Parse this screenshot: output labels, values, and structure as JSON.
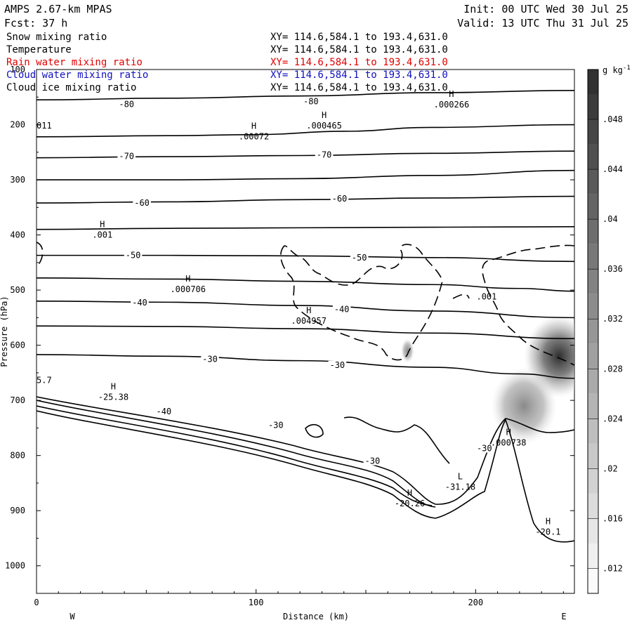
{
  "header": {
    "model": "AMPS 2.67-km MPAS",
    "forecast": "Fcst:   37 h",
    "init": "Init: 00 UTC Wed 30 Jul 25",
    "valid": "Valid: 13 UTC Thu 31 Jul 25"
  },
  "legend": [
    {
      "name": "Snow mixing ratio",
      "xy": "XY= 114.6,584.1 to 193.4,631.0",
      "color": "#000000"
    },
    {
      "name": "Temperature",
      "xy": "XY= 114.6,584.1 to 193.4,631.0",
      "color": "#000000"
    },
    {
      "name": "Rain water mixing ratio",
      "xy": "XY= 114.6,584.1 to 193.4,631.0",
      "color": "#e00000"
    },
    {
      "name": "Cloud water mixing ratio",
      "xy": "XY= 114.6,584.1 to 193.4,631.0",
      "color": "#1010c0"
    },
    {
      "name": "Cloud ice mixing ratio",
      "xy": "XY= 114.6,584.1 to 193.4,631.0",
      "color": "#000000"
    }
  ],
  "chart_data": {
    "type": "contour",
    "xlabel": "Distance (km)",
    "ylabel": "Pressure (hPa)",
    "xlim": [
      0,
      245
    ],
    "ylim": [
      100,
      1050
    ],
    "x_ticks": [
      0,
      100,
      200
    ],
    "y_ticks": [
      100,
      200,
      300,
      400,
      500,
      600,
      700,
      800,
      900,
      1000
    ],
    "x_end_labels": {
      "left": "W",
      "right": "E"
    },
    "colorbar": {
      "unit": "g kg",
      "unit_exp": "-1",
      "ticks": [
        ".012",
        ".016",
        ".02",
        ".024",
        ".028",
        ".032",
        ".036",
        ".04",
        ".044",
        ".048"
      ],
      "tick_values": [
        0.012,
        0.016,
        0.02,
        0.024,
        0.028,
        0.032,
        0.036,
        0.04,
        0.044,
        0.048
      ],
      "range": [
        0.01,
        0.052
      ]
    },
    "isotherms": [
      {
        "label": "-80",
        "points": [
          [
            0,
            155
          ],
          [
            60,
            152
          ],
          [
            120,
            148
          ],
          [
            180,
            142
          ],
          [
            245,
            138
          ]
        ]
      },
      {
        "label": "",
        "points": [
          [
            0,
            222
          ],
          [
            60,
            220
          ],
          [
            100,
            218
          ],
          [
            140,
            212
          ],
          [
            180,
            205
          ],
          [
            245,
            200
          ]
        ]
      },
      {
        "label": "-70",
        "points": [
          [
            0,
            260
          ],
          [
            60,
            258
          ],
          [
            120,
            256
          ],
          [
            180,
            252
          ],
          [
            245,
            248
          ]
        ]
      },
      {
        "label": "",
        "points": [
          [
            0,
            300
          ],
          [
            60,
            300
          ],
          [
            120,
            298
          ],
          [
            180,
            292
          ],
          [
            245,
            283
          ]
        ]
      },
      {
        "label": "-60",
        "points": [
          [
            0,
            342
          ],
          [
            60,
            340
          ],
          [
            120,
            336
          ],
          [
            180,
            333
          ],
          [
            245,
            330
          ]
        ]
      },
      {
        "label": "",
        "points": [
          [
            0,
            390
          ],
          [
            60,
            388
          ],
          [
            120,
            387
          ],
          [
            180,
            386
          ],
          [
            245,
            385
          ]
        ]
      },
      {
        "label": "-50",
        "points": [
          [
            0,
            437
          ],
          [
            60,
            437
          ],
          [
            120,
            438
          ],
          [
            180,
            441
          ],
          [
            245,
            448
          ]
        ]
      },
      {
        "label": "",
        "points": [
          [
            0,
            478
          ],
          [
            60,
            480
          ],
          [
            120,
            484
          ],
          [
            180,
            490
          ],
          [
            220,
            497
          ],
          [
            245,
            502
          ]
        ]
      },
      {
        "label": "-40",
        "points": [
          [
            0,
            520
          ],
          [
            60,
            522
          ],
          [
            120,
            528
          ],
          [
            180,
            538
          ],
          [
            245,
            550
          ]
        ]
      },
      {
        "label": "",
        "points": [
          [
            0,
            565
          ],
          [
            60,
            566
          ],
          [
            120,
            570
          ],
          [
            180,
            578
          ],
          [
            245,
            588
          ]
        ]
      },
      {
        "label": "-30",
        "points": [
          [
            0,
            617
          ],
          [
            60,
            620
          ],
          [
            120,
            628
          ],
          [
            180,
            640
          ],
          [
            220,
            652
          ],
          [
            245,
            660
          ]
        ]
      }
    ],
    "contour_labels": [
      {
        "x": 41,
        "p": 163,
        "text": "-80"
      },
      {
        "x": 125,
        "p": 158,
        "text": "-80"
      },
      {
        "x": 41,
        "p": 257,
        "text": "-70"
      },
      {
        "x": 131,
        "p": 255,
        "text": "-70"
      },
      {
        "x": 48,
        "p": 342,
        "text": "-60"
      },
      {
        "x": 138,
        "p": 334,
        "text": "-60"
      },
      {
        "x": 44,
        "p": 437,
        "text": "-50"
      },
      {
        "x": 147,
        "p": 441,
        "text": "-50"
      },
      {
        "x": 47,
        "p": 523,
        "text": "-40"
      },
      {
        "x": 139,
        "p": 535,
        "text": "-40"
      },
      {
        "x": 79,
        "p": 625,
        "text": "-30"
      },
      {
        "x": 137,
        "p": 636,
        "text": "-30"
      },
      {
        "x": 58,
        "p": 720,
        "text": "-40"
      },
      {
        "x": 109,
        "p": 745,
        "text": "-30"
      },
      {
        "x": 153,
        "p": 810,
        "text": "-30"
      },
      {
        "x": 204,
        "p": 787,
        "text": "-30"
      }
    ],
    "extrema": [
      {
        "x": 99,
        "p": 218,
        "type": "H",
        "value": ".00072"
      },
      {
        "x": 131,
        "p": 198,
        "type": "H",
        "value": ".000465"
      },
      {
        "x": 189,
        "p": 160,
        "type": "H",
        "value": ".000266"
      },
      {
        "x": 30,
        "p": 396,
        "type": "H",
        "value": ".001"
      },
      {
        "x": 69,
        "p": 495,
        "type": "H",
        "value": ".000706"
      },
      {
        "x": 124,
        "p": 552,
        "type": "H",
        "value": ".004957"
      },
      {
        "x": 205,
        "p": 508,
        "type": "",
        "value": ".001"
      },
      {
        "x": 35,
        "p": 690,
        "type": "H",
        "value": "-25.38"
      },
      {
        "x": 170,
        "p": 883,
        "type": "H",
        "value": "-20.26"
      },
      {
        "x": 193,
        "p": 853,
        "type": "L",
        "value": "-31.18"
      },
      {
        "x": 215,
        "p": 773,
        "type": "H",
        "value": ".000738"
      },
      {
        "x": 233,
        "p": 935,
        "type": "H",
        "value": "-20.1"
      },
      {
        "x": 0,
        "p": 660,
        "type": "",
        "value": "5.7"
      },
      {
        "x": 0,
        "p": 198,
        "type": "",
        "value": "011"
      }
    ],
    "shaded_cells": [
      {
        "x": 238,
        "p": 620,
        "rx": 16,
        "rp": 75,
        "value": 0.05
      },
      {
        "x": 222,
        "p": 710,
        "rx": 15,
        "rp": 70,
        "value": 0.03
      },
      {
        "x": 169,
        "p": 610,
        "rx": 3,
        "rp": 22,
        "value": 0.014
      }
    ]
  }
}
